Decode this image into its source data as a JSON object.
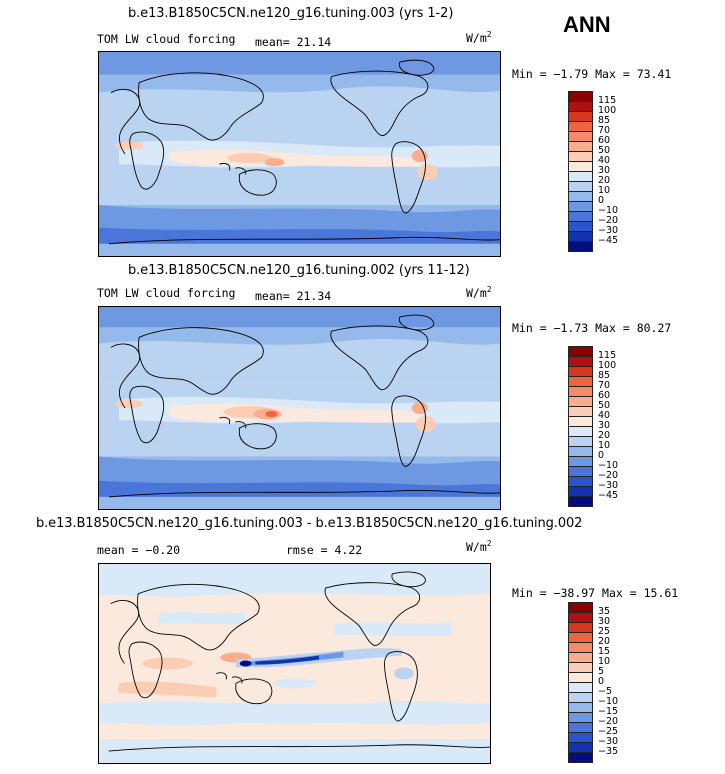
{
  "season": "ANN",
  "panels": [
    {
      "title": "b.e13.B1850C5CN.ne120_g16.tuning.003 (yrs 1-2)",
      "variable": "TOM LW cloud forcing",
      "mean_label": "mean=",
      "mean_value": "21.14",
      "units": "W/m",
      "units_exp": "2",
      "min_label": "Min =",
      "min_value": "-1.79",
      "max_label": "Max =",
      "max_value": "73.41",
      "levels": [
        "115",
        "100",
        "85",
        "70",
        "60",
        "50",
        "40",
        "30",
        "20",
        "10",
        "0",
        "-10",
        "-20",
        "-30",
        "-45"
      ],
      "colors": [
        "#8b0000",
        "#b01010",
        "#d8361f",
        "#ef6540",
        "#f58a66",
        "#f8ad8f",
        "#fbcdb5",
        "#fbe9de",
        "#d9e9f7",
        "#b9d3f1",
        "#95b9ea",
        "#6f98e2",
        "#4a76d9",
        "#2a55cc",
        "#1133b0",
        "#000e80"
      ]
    },
    {
      "title": "b.e13.B1850C5CN.ne120_g16.tuning.002 (yrs 11-12)",
      "variable": "TOM LW cloud forcing",
      "mean_label": "mean=",
      "mean_value": "21.34",
      "units": "W/m",
      "units_exp": "2",
      "min_label": "Min =",
      "min_value": "-1.73",
      "max_label": "Max =",
      "max_value": "80.27",
      "levels": [
        "115",
        "100",
        "85",
        "70",
        "60",
        "50",
        "40",
        "30",
        "20",
        "10",
        "0",
        "-10",
        "-20",
        "-30",
        "-45"
      ],
      "colors": [
        "#8b0000",
        "#b01010",
        "#d8361f",
        "#ef6540",
        "#f58a66",
        "#f8ad8f",
        "#fbcdb5",
        "#fbe9de",
        "#d9e9f7",
        "#b9d3f1",
        "#95b9ea",
        "#6f98e2",
        "#4a76d9",
        "#2a55cc",
        "#1133b0",
        "#000e80"
      ]
    },
    {
      "title": "b.e13.B1850C5CN.ne120_g16.tuning.003 - b.e13.B1850C5CN.ne120_g16.tuning.002",
      "mean_label": "mean =",
      "mean_value": "-0.20",
      "rmse_label": "rmse =",
      "rmse_value": "4.22",
      "units": "W/m",
      "units_exp": "2",
      "min_label": "Min =",
      "min_value": "-38.97",
      "max_label": "Max =",
      "max_value": "15.61",
      "levels": [
        "35",
        "30",
        "25",
        "20",
        "15",
        "10",
        "5",
        "0",
        "-5",
        "-10",
        "-15",
        "-20",
        "-25",
        "-30",
        "-35"
      ],
      "colors": [
        "#8b0000",
        "#b01010",
        "#d8361f",
        "#ef6540",
        "#f58a66",
        "#f8ad8f",
        "#fbcdb5",
        "#fbe9de",
        "#d9e9f7",
        "#b9d3f1",
        "#95b9ea",
        "#6f98e2",
        "#4a76d9",
        "#2a55cc",
        "#1133b0",
        "#000e80"
      ]
    }
  ]
}
